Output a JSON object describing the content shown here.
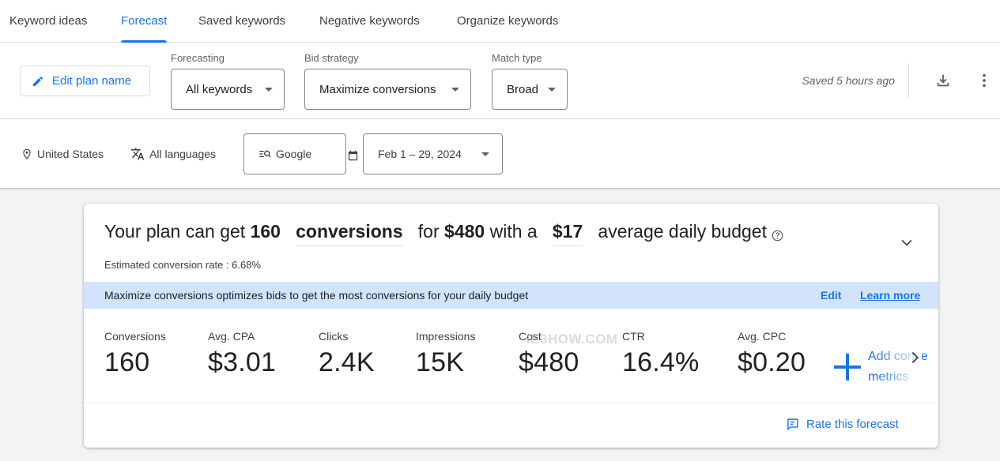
{
  "tabs": [
    "Keyword ideas",
    "Forecast",
    "Saved keywords",
    "Negative keywords",
    "Organize keywords"
  ],
  "toolbar": {
    "edit_plan_label": "Edit plan name",
    "forecasting": {
      "label": "Forecasting",
      "value": "All keywords"
    },
    "bid_strategy": {
      "label": "Bid strategy",
      "value": "Maximize conversions"
    },
    "match_type": {
      "label": "Match type",
      "value": "Broad"
    },
    "saved_status": "Saved 5 hours ago"
  },
  "filters": {
    "location": "United States",
    "language": "All languages",
    "network": "Google",
    "date_range": "Feb 1 – 29, 2024"
  },
  "summary": {
    "prefix": "Your plan can get",
    "conversions": "160",
    "metric_word": "conversions",
    "for_word": "for",
    "cost": "$480",
    "with_word": "with a",
    "budget": "$17",
    "suffix": "average daily budget",
    "conversion_rate": "Estimated conversion rate : 6.68%"
  },
  "banner": {
    "text": "Maximize conversions optimizes bids to get the most conversions for your daily budget",
    "edit_label": "Edit",
    "learn_more_label": "Learn more"
  },
  "metrics": [
    {
      "label": "Conversions",
      "value": "160"
    },
    {
      "label": "Avg. CPA",
      "value": "$3.01"
    },
    {
      "label": "Clicks",
      "value": "2.4K"
    },
    {
      "label": "Impressions",
      "value": "15K"
    },
    {
      "label": "Cost",
      "value": "$480"
    },
    {
      "label": "CTR",
      "value": "16.4%"
    },
    {
      "label": "Avg. CPC",
      "value": "$0.20"
    }
  ],
  "add_metrics": {
    "line1": "Add conve",
    "line2": "metrics"
  },
  "rate_forecast_label": "Rate this forecast",
  "watermark": "IE3HOW.COM",
  "colors": {
    "accent": "#1a73e8",
    "banner": "#d2e3fc",
    "text": "#202124"
  },
  "icons": [
    "pencil-icon",
    "download-icon",
    "more-vert-icon",
    "location-pin-icon",
    "translate-icon",
    "search-network-icon",
    "calendar-icon",
    "help-circle-icon",
    "chevron-down-icon",
    "plus-icon",
    "chevron-right-icon",
    "feedback-icon"
  ]
}
